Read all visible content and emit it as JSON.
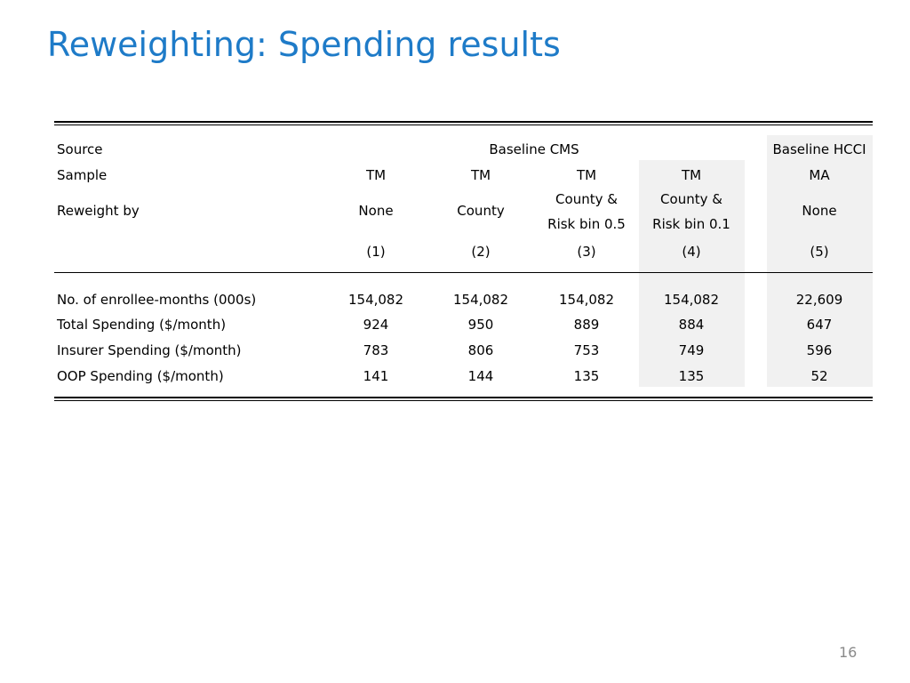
{
  "title": "Reweighting: Spending results",
  "page_number": "16",
  "table": {
    "header": {
      "source_label": "Source",
      "source_cms": "Baseline CMS",
      "source_hcci": "Baseline HCCI",
      "sample_label": "Sample",
      "samples": [
        "TM",
        "TM",
        "TM",
        "TM",
        "MA"
      ],
      "reweight_label": "Reweight by",
      "reweights": [
        {
          "line1": "None",
          "line2": ""
        },
        {
          "line1": "County",
          "line2": ""
        },
        {
          "line1": "County &",
          "line2": "Risk bin 0.5"
        },
        {
          "line1": "County &",
          "line2": "Risk bin 0.1"
        },
        {
          "line1": "None",
          "line2": ""
        }
      ],
      "columns": [
        "(1)",
        "(2)",
        "(3)",
        "(4)",
        "(5)"
      ]
    },
    "rows": [
      {
        "label": "No. of enrollee-months (000s)",
        "values": [
          "154,082",
          "154,082",
          "154,082",
          "154,082",
          "22,609"
        ]
      },
      {
        "label": "Total Spending ($/month)",
        "values": [
          "924",
          "950",
          "889",
          "884",
          "647"
        ]
      },
      {
        "label": "Insurer Spending ($/month)",
        "values": [
          "783",
          "806",
          "753",
          "749",
          "596"
        ]
      },
      {
        "label": "OOP Spending  ($/month)",
        "values": [
          "141",
          "144",
          "135",
          "135",
          "52"
        ]
      }
    ]
  }
}
